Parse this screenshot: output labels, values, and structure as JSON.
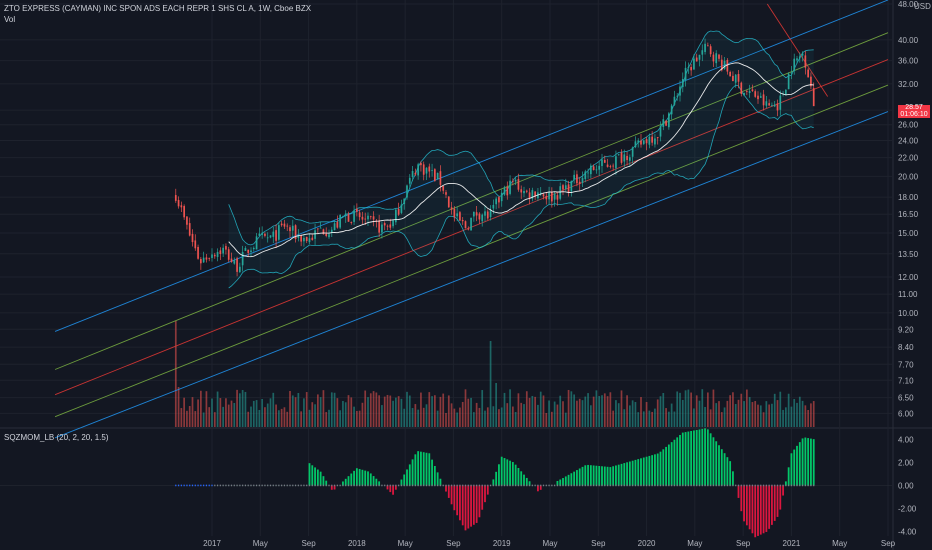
{
  "header": {
    "symbol_title": "ZTO EXPRESS (CAYMAN) INC SPON ADS EACH REPR 1 SHS CL A, 1W, Cboe BZX",
    "volume_label": "Vol",
    "currency": "USD"
  },
  "price_badge": {
    "price": "28.57",
    "countdown": "01:06:10"
  },
  "indicator": {
    "title": "SQZMOM_LB (20, 2, 20, 1.5)"
  },
  "colors": {
    "background": "#131722",
    "up": "#26a69a",
    "down": "#ef5350",
    "bb": "#26c6da",
    "ma": "#ffffff",
    "channel_blue": "#2196f3",
    "channel_green": "#7cb342",
    "channel_red": "#e53935",
    "mom_green": "#00e676",
    "mom_red": "#ff1744"
  },
  "chart_data": [
    {
      "type": "candlestick",
      "title": "ZTO EXPRESS (CAYMAN) INC SPON ADS EACH REPR 1 SHS CL A, 1W, Cboe BZX",
      "y_scale": "log",
      "ylim": [
        5.6,
        48
      ],
      "y_ticks": [
        "48.00",
        "40.00",
        "36.00",
        "32.00",
        "28.00",
        "26.00",
        "24.00",
        "22.00",
        "20.00",
        "18.00",
        "16.50",
        "15.00",
        "13.50",
        "12.00",
        "11.00",
        "10.00",
        "9.20",
        "8.40",
        "7.70",
        "7.10",
        "6.50",
        "6.00"
      ],
      "x_ticks": [
        "2017",
        "May",
        "Sep",
        "2018",
        "May",
        "Sep",
        "2019",
        "May",
        "Sep",
        "2020",
        "May",
        "Sep",
        "2021",
        "May",
        "Sep"
      ],
      "x_tick_dates": [
        "2017-01",
        "2017-05",
        "2017-09",
        "2018-01",
        "2018-05",
        "2018-09",
        "2019-01",
        "2019-05",
        "2019-09",
        "2020-01",
        "2020-05",
        "2020-09",
        "2021-01",
        "2021-05",
        "2021-09"
      ],
      "close_path": [
        [
          "2016-10",
          18.3
        ],
        [
          "2016-11",
          15.2
        ],
        [
          "2016-12",
          13.0
        ],
        [
          "2017-01",
          13.6
        ],
        [
          "2017-02",
          13.8
        ],
        [
          "2017-03",
          12.6
        ],
        [
          "2017-04",
          13.8
        ],
        [
          "2017-05",
          14.6
        ],
        [
          "2017-06",
          14.6
        ],
        [
          "2017-07",
          15.6
        ],
        [
          "2017-08",
          14.8
        ],
        [
          "2017-09",
          14.5
        ],
        [
          "2017-10",
          15.3
        ],
        [
          "2017-11",
          15.3
        ],
        [
          "2017-12",
          16.4
        ],
        [
          "2018-01",
          16.3
        ],
        [
          "2018-02",
          15.8
        ],
        [
          "2018-03",
          15.4
        ],
        [
          "2018-04",
          15.8
        ],
        [
          "2018-05",
          18.6
        ],
        [
          "2018-06",
          21.2
        ],
        [
          "2018-07",
          20.5
        ],
        [
          "2018-08",
          19.4
        ],
        [
          "2018-09",
          16.3
        ],
        [
          "2018-10",
          15.5
        ],
        [
          "2018-11",
          16.7
        ],
        [
          "2018-12",
          16.3
        ],
        [
          "2019-01",
          18.2
        ],
        [
          "2019-02",
          19.5
        ],
        [
          "2019-03",
          18.3
        ],
        [
          "2019-04",
          18.6
        ],
        [
          "2019-05",
          18.0
        ],
        [
          "2019-06",
          18.6
        ],
        [
          "2019-07",
          19.5
        ],
        [
          "2019-08",
          20.4
        ],
        [
          "2019-09",
          21.0
        ],
        [
          "2019-10",
          21.4
        ],
        [
          "2019-11",
          22.2
        ],
        [
          "2019-12",
          23.0
        ],
        [
          "2020-01",
          24.2
        ],
        [
          "2020-02",
          25.0
        ],
        [
          "2020-03",
          28.0
        ],
        [
          "2020-04",
          33.0
        ],
        [
          "2020-05",
          36.0
        ],
        [
          "2020-06",
          38.5
        ],
        [
          "2020-07",
          36.0
        ],
        [
          "2020-08",
          33.5
        ],
        [
          "2020-09",
          31.0
        ],
        [
          "2020-10",
          30.2
        ],
        [
          "2020-11",
          28.5
        ],
        [
          "2020-12",
          29.0
        ],
        [
          "2021-01",
          35.0
        ],
        [
          "2021-02",
          37.5
        ],
        [
          "2021-03",
          28.57
        ]
      ],
      "volume_notes": "Volume histogram in lower price panel; spikes around 2016-10 and 2018-12",
      "overlays": [
        "Bollinger bands (20)",
        "Moving average",
        "Linear regression channel"
      ]
    },
    {
      "type": "bar",
      "title": "SQZMOM_LB (20, 2, 20, 1.5)",
      "ylim": [
        -4.4,
        5
      ],
      "y_ticks": [
        "4.00",
        "2.00",
        "0.00",
        "-2.00",
        "-4.00"
      ],
      "series": [
        {
          "name": "SQZMOM_LB",
          "values": [
            [
              "2017-09",
              2.0
            ],
            [
              "2017-10",
              1.2
            ],
            [
              "2017-11",
              -0.5
            ],
            [
              "2018-01",
              1.5
            ],
            [
              "2018-02",
              1.2
            ],
            [
              "2018-04",
              -0.8
            ],
            [
              "2018-06",
              3.0
            ],
            [
              "2018-07",
              2.8
            ],
            [
              "2018-09",
              -2.0
            ],
            [
              "2018-10",
              -3.9
            ],
            [
              "2018-11",
              -3.2
            ],
            [
              "2019-01",
              2.5
            ],
            [
              "2019-02",
              2.0
            ],
            [
              "2019-04",
              -0.5
            ],
            [
              "2019-06",
              0.6
            ],
            [
              "2019-08",
              1.8
            ],
            [
              "2019-10",
              1.6
            ],
            [
              "2019-12",
              2.2
            ],
            [
              "2020-02",
              2.8
            ],
            [
              "2020-04",
              4.6
            ],
            [
              "2020-06",
              5.0
            ],
            [
              "2020-08",
              2.0
            ],
            [
              "2020-09",
              -3.0
            ],
            [
              "2020-10",
              -4.5
            ],
            [
              "2020-11",
              -4.0
            ],
            [
              "2020-12",
              -2.5
            ],
            [
              "2021-01",
              2.8
            ],
            [
              "2021-02",
              4.2
            ],
            [
              "2021-03",
              4.0
            ]
          ]
        }
      ]
    }
  ]
}
